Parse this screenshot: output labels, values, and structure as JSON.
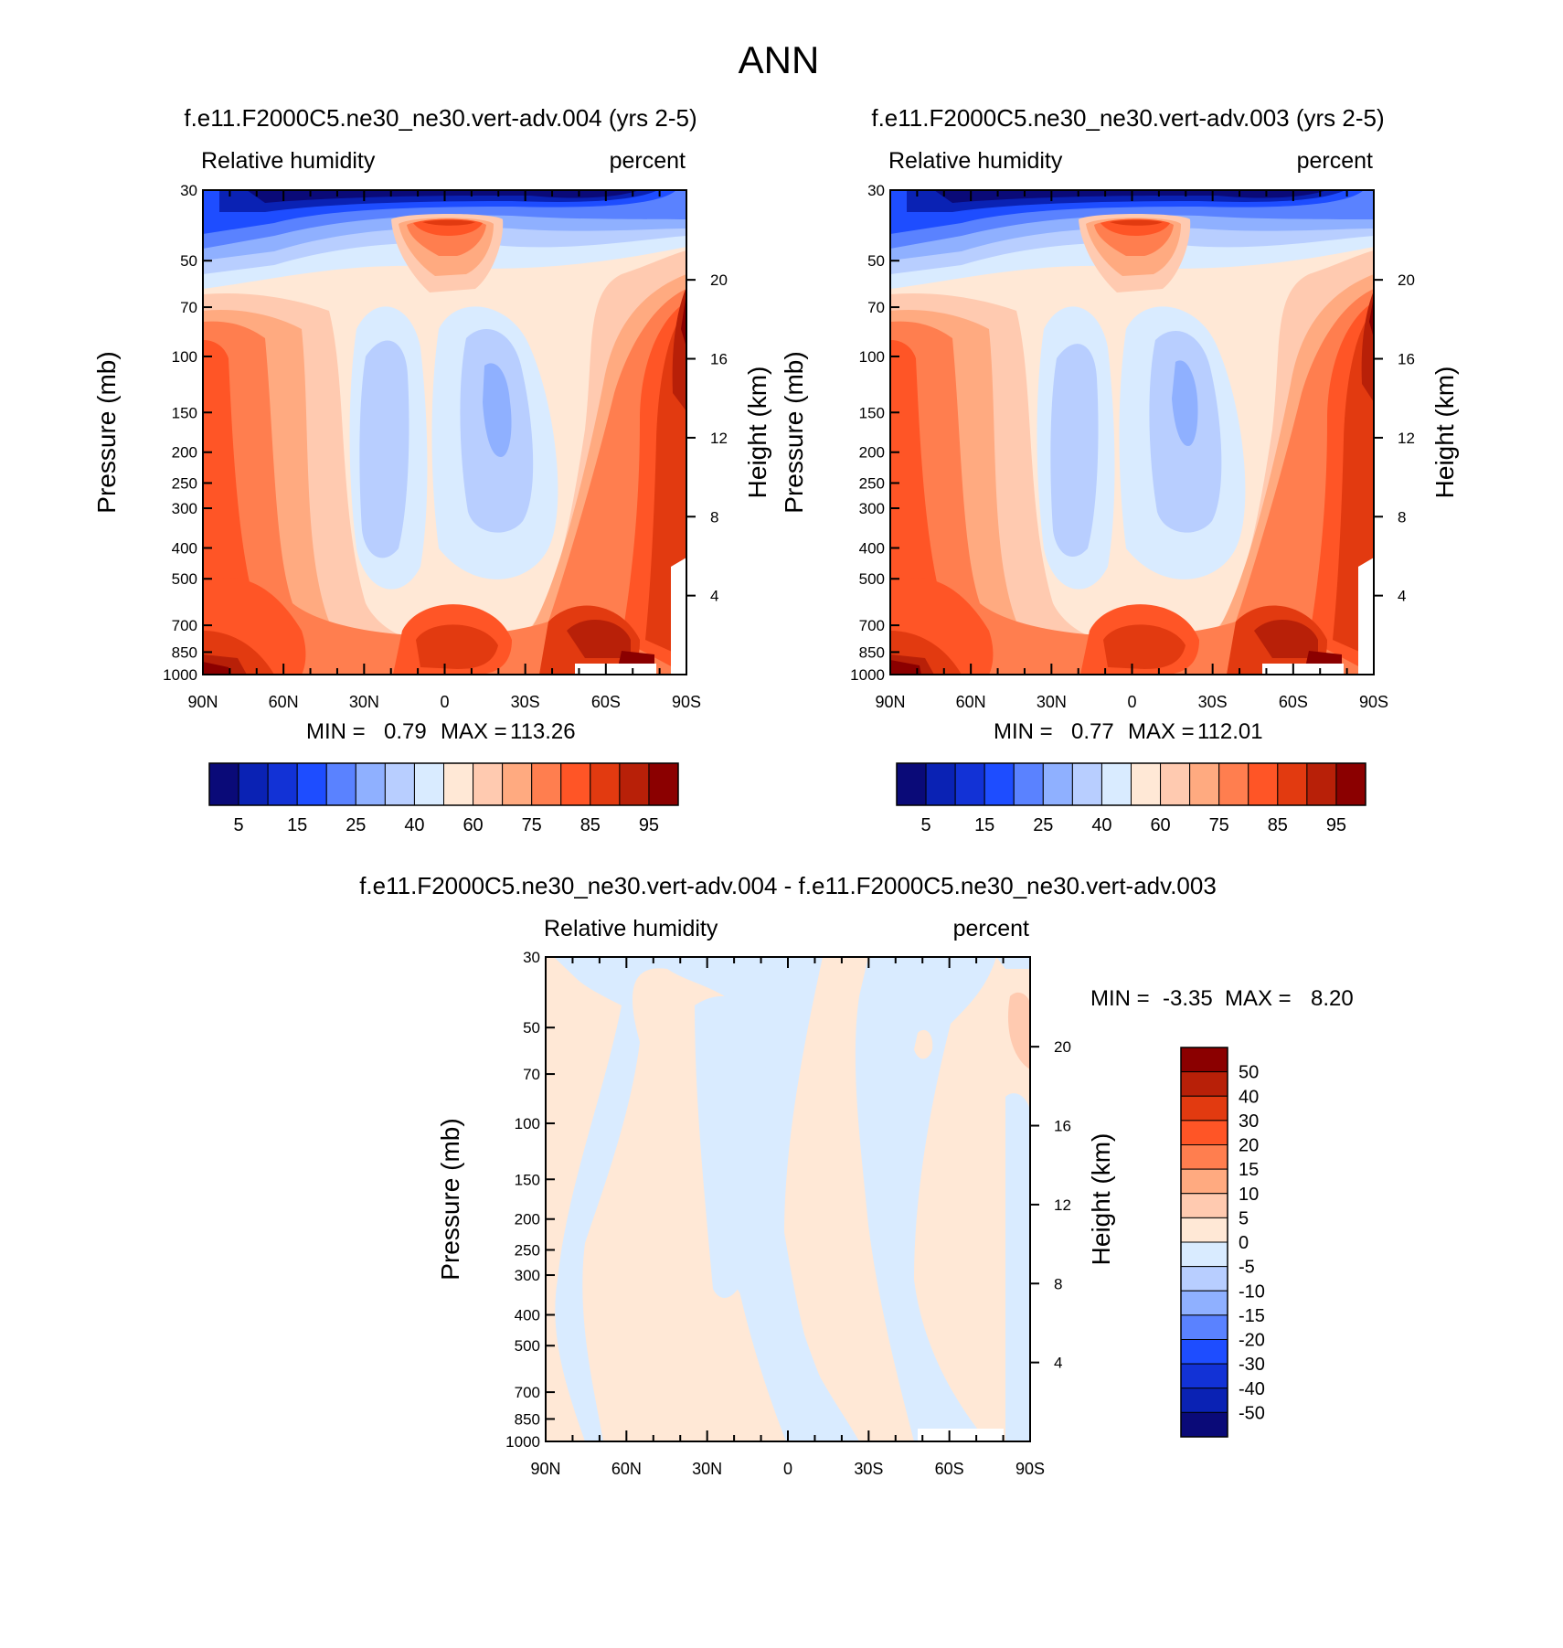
{
  "title": "ANN",
  "scale": {
    "pressure_ticks": [
      30,
      50,
      70,
      100,
      150,
      200,
      250,
      300,
      400,
      500,
      700,
      850,
      1000
    ],
    "height_ticks": [
      20,
      16,
      12,
      8,
      4
    ],
    "lat_ticks": [
      "90N",
      "60N",
      "30N",
      "0",
      "30S",
      "60S",
      "90S"
    ],
    "pressure_label": "Pressure (mb)",
    "height_label": "Height (km)"
  },
  "chart_data": [
    {
      "type": "heatmap",
      "title": "f.e11.F2000C5.ne30_ne30.vert-adv.004 (yrs 2-5)",
      "left_label": "Relative humidity",
      "right_label": "percent",
      "ylabel": "Pressure (mb)",
      "y2label": "Height (km)",
      "x_range": [
        "90N",
        "90S"
      ],
      "ylim": [
        1000,
        30
      ],
      "stats": {
        "min_label": "MIN =",
        "min": "0.79",
        "max_label": "MAX =",
        "max": "113.26"
      },
      "colorbar": {
        "orientation": "horizontal",
        "labels": [
          "5",
          "15",
          "25",
          "40",
          "60",
          "75",
          "85",
          "95"
        ],
        "colors": [
          "#0a0a78",
          "#0a22b4",
          "#1232d6",
          "#1e4dff",
          "#5a82ff",
          "#8fb0ff",
          "#b8ceff",
          "#d9ebff",
          "#ffe8d6",
          "#ffcab0",
          "#ffaa80",
          "#ff7e4f",
          "#ff5526",
          "#e23a10",
          "#b82008",
          "#8b0000"
        ]
      }
    },
    {
      "type": "heatmap",
      "title": "f.e11.F2000C5.ne30_ne30.vert-adv.003 (yrs 2-5)",
      "left_label": "Relative humidity",
      "right_label": "percent",
      "ylabel": "Pressure (mb)",
      "y2label": "Height (km)",
      "x_range": [
        "90N",
        "90S"
      ],
      "ylim": [
        1000,
        30
      ],
      "stats": {
        "min_label": "MIN =",
        "min": "0.77",
        "max_label": "MAX =",
        "max": "112.01"
      },
      "colorbar": {
        "orientation": "horizontal",
        "labels": [
          "5",
          "15",
          "25",
          "40",
          "60",
          "75",
          "85",
          "95"
        ],
        "colors": [
          "#0a0a78",
          "#0a22b4",
          "#1232d6",
          "#1e4dff",
          "#5a82ff",
          "#8fb0ff",
          "#b8ceff",
          "#d9ebff",
          "#ffe8d6",
          "#ffcab0",
          "#ffaa80",
          "#ff7e4f",
          "#ff5526",
          "#e23a10",
          "#b82008",
          "#8b0000"
        ]
      }
    },
    {
      "type": "heatmap",
      "title": "f.e11.F2000C5.ne30_ne30.vert-adv.004 - f.e11.F2000C5.ne30_ne30.vert-adv.003",
      "left_label": "Relative humidity",
      "right_label": "percent",
      "ylabel": "Pressure (mb)",
      "y2label": "Height (km)",
      "x_range": [
        "90N",
        "90S"
      ],
      "ylim": [
        1000,
        30
      ],
      "stats": {
        "min_label": "MIN =",
        "min": "-3.35",
        "max_label": "MAX =",
        "max": "8.20"
      },
      "colorbar": {
        "orientation": "vertical",
        "labels": [
          "50",
          "40",
          "30",
          "20",
          "15",
          "10",
          "5",
          "0",
          "-5",
          "-10",
          "-15",
          "-20",
          "-30",
          "-40",
          "-50"
        ],
        "colors": [
          "#8b0000",
          "#b82008",
          "#e23a10",
          "#ff5526",
          "#ff7e4f",
          "#ffaa80",
          "#ffcab0",
          "#ffe8d6",
          "#d9ebff",
          "#b8ceff",
          "#8fb0ff",
          "#5a82ff",
          "#1e4dff",
          "#1232d6",
          "#0a22b4",
          "#0a0a78"
        ]
      }
    }
  ]
}
